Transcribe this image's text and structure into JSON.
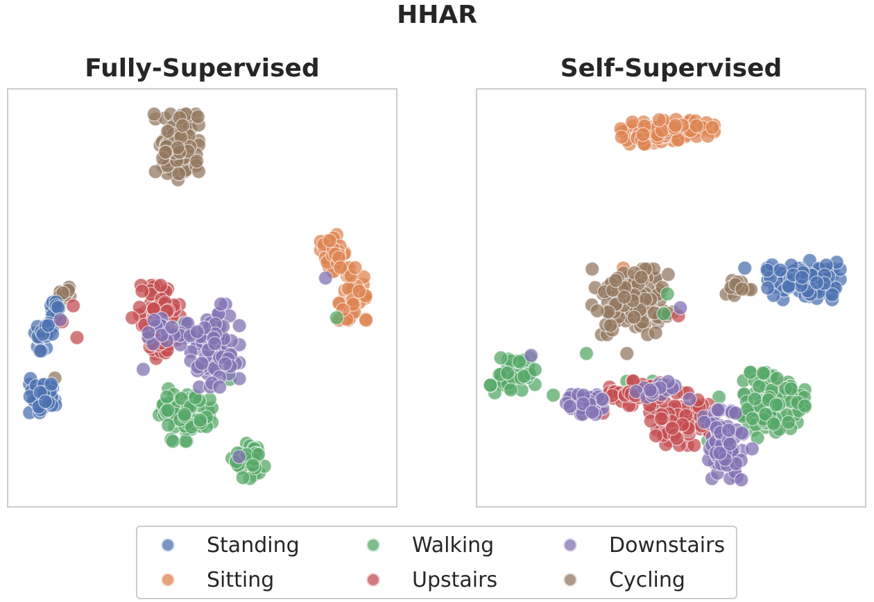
{
  "figure": {
    "suptitle": "HHAR"
  },
  "colors": {
    "Standing": "#4c72b0",
    "Sitting": "#dd8452",
    "Walking": "#55a868",
    "Upstairs": "#c44e52",
    "Downstairs": "#8172b3",
    "Cycling": "#937860"
  },
  "legend": {
    "items": [
      "Standing",
      "Walking",
      "Downstairs",
      "Sitting",
      "Upstairs",
      "Cycling"
    ]
  },
  "chart_data": [
    {
      "type": "scatter",
      "title": "Fully-Supervised",
      "xlabel": "",
      "ylabel": "",
      "grid": false,
      "axis_ticks": false,
      "xlim": [
        0,
        100
      ],
      "ylim": [
        0,
        100
      ],
      "series": [
        {
          "name": "Cycling",
          "clusters": [
            {
              "cx": 43,
              "cy": 88,
              "rx": 5.5,
              "ry": 7.5,
              "n": 130
            },
            {
              "cx": 12.5,
              "cy": 51,
              "rx": 2.5,
              "ry": 2,
              "n": 14
            }
          ],
          "points": [
            {
              "x": 10,
              "y": 29.8
            }
          ]
        },
        {
          "name": "Sitting",
          "clusters": [
            {
              "cx": 86,
              "cy": 61,
              "rx": 3.5,
              "ry": 5,
              "n": 36
            },
            {
              "cx": 91,
              "cy": 51,
              "rx": 3.5,
              "ry": 6,
              "n": 44
            }
          ],
          "points": []
        },
        {
          "name": "Standing",
          "clusters": [
            {
              "cx": 10,
              "cy": 48,
              "rx": 1.5,
              "ry": 2.2,
              "n": 10
            },
            {
              "cx": 7,
              "cy": 40.5,
              "rx": 2.5,
              "ry": 3.5,
              "n": 26
            },
            {
              "cx": 7,
              "cy": 25.5,
              "rx": 3.5,
              "ry": 4,
              "n": 42
            }
          ],
          "points": []
        },
        {
          "name": "Upstairs",
          "clusters": [
            {
              "cx": 38.5,
              "cy": 46,
              "rx": 5,
              "ry": 6.5,
              "n": 80
            },
            {
              "cx": 38,
              "cy": 37.5,
              "rx": 4,
              "ry": 2.5,
              "n": 20
            }
          ],
          "points": [
            {
              "x": 15,
              "y": 48
            },
            {
              "x": 12,
              "y": 44
            },
            {
              "x": 16,
              "y": 40
            },
            {
              "x": 31,
              "y": 45
            }
          ]
        },
        {
          "name": "Walking",
          "clusters": [
            {
              "cx": 45.5,
              "cy": 20.5,
              "rx": 6.5,
              "ry": 6,
              "n": 90
            },
            {
              "cx": 62.5,
              "cy": 9.5,
              "rx": 4,
              "ry": 4.5,
              "n": 40
            }
          ],
          "points": [
            {
              "x": 86.5,
              "y": 45
            },
            {
              "x": 57.5,
              "y": 29.5
            },
            {
              "x": 45,
              "y": 43.5
            }
          ]
        },
        {
          "name": "Downstairs",
          "clusters": [
            {
              "cx": 53.5,
              "cy": 38,
              "rx": 6,
              "ry": 9.5,
              "n": 85
            },
            {
              "cx": 42,
              "cy": 41.5,
              "rx": 6,
              "ry": 3,
              "n": 26
            }
          ],
          "points": [
            {
              "x": 11.5,
              "y": 44.5
            },
            {
              "x": 34,
              "y": 32
            },
            {
              "x": 60,
              "y": 10
            },
            {
              "x": 83.5,
              "y": 55
            }
          ]
        }
      ]
    },
    {
      "type": "scatter",
      "title": "Self-Supervised",
      "xlabel": "",
      "ylabel": "",
      "grid": false,
      "axis_ticks": false,
      "xlim": [
        0,
        100
      ],
      "ylim": [
        0,
        100
      ],
      "series": [
        {
          "name": "Sitting",
          "clusters": [
            {
              "cx": 44,
              "cy": 91.5,
              "rx": 9,
              "ry": 2.5,
              "n": 60
            },
            {
              "cx": 54,
              "cy": 92.5,
              "rx": 7,
              "ry": 2.5,
              "n": 40
            }
          ],
          "points": [
            {
              "x": 37,
              "y": 57.5
            }
          ]
        },
        {
          "name": "Standing",
          "clusters": [
            {
              "cx": 86,
              "cy": 54.5,
              "rx": 9,
              "ry": 4.5,
              "n": 90
            }
          ],
          "points": [
            {
              "x": 70,
              "y": 57.5
            }
          ]
        },
        {
          "name": "Cycling",
          "clusters": [
            {
              "cx": 39.5,
              "cy": 49,
              "rx": 10,
              "ry": 7.5,
              "n": 130
            },
            {
              "cx": 68,
              "cy": 52.5,
              "rx": 4,
              "ry": 1.7,
              "n": 14
            }
          ],
          "points": [
            {
              "x": 38,
              "y": 36
            },
            {
              "x": 57,
              "y": 23
            },
            {
              "x": 80,
              "y": 28.5
            }
          ]
        },
        {
          "name": "Walking",
          "clusters": [
            {
              "cx": 7,
              "cy": 30.5,
              "rx": 5.5,
              "ry": 4,
              "n": 50
            },
            {
              "cx": 77.5,
              "cy": 23,
              "rx": 8,
              "ry": 7.5,
              "n": 100
            }
          ],
          "points": [
            {
              "x": 27,
              "y": 36
            },
            {
              "x": 18,
              "y": 25.5
            },
            {
              "x": 49,
              "y": 51
            },
            {
              "x": 38,
              "y": 29
            },
            {
              "x": 45,
              "y": 29
            },
            {
              "x": 63,
              "y": 25
            },
            {
              "x": 60,
              "y": 14
            },
            {
              "x": 48,
              "y": 46
            }
          ]
        },
        {
          "name": "Upstairs",
          "clusters": [
            {
              "cx": 41,
              "cy": 26,
              "rx": 7,
              "ry": 2.8,
              "n": 50
            },
            {
              "cx": 53,
              "cy": 19.5,
              "rx": 8,
              "ry": 6,
              "n": 90
            }
          ],
          "points": [
            {
              "x": 31.5,
              "y": 21
            },
            {
              "x": 52,
              "y": 45.5
            }
          ]
        },
        {
          "name": "Downstairs",
          "clusters": [
            {
              "cx": 26.5,
              "cy": 24,
              "rx": 4.5,
              "ry": 3,
              "n": 38
            },
            {
              "cx": 64,
              "cy": 13,
              "rx": 5,
              "ry": 8,
              "n": 90
            },
            {
              "cx": 46,
              "cy": 27,
              "rx": 5,
              "ry": 1.8,
              "n": 16
            }
          ],
          "points": [
            {
              "x": 12,
              "y": 35.5
            },
            {
              "x": 52.5,
              "y": 47.5
            },
            {
              "x": 55,
              "y": 24.5
            },
            {
              "x": 67.5,
              "y": 21
            },
            {
              "x": 72,
              "y": 12
            }
          ]
        }
      ]
    }
  ]
}
